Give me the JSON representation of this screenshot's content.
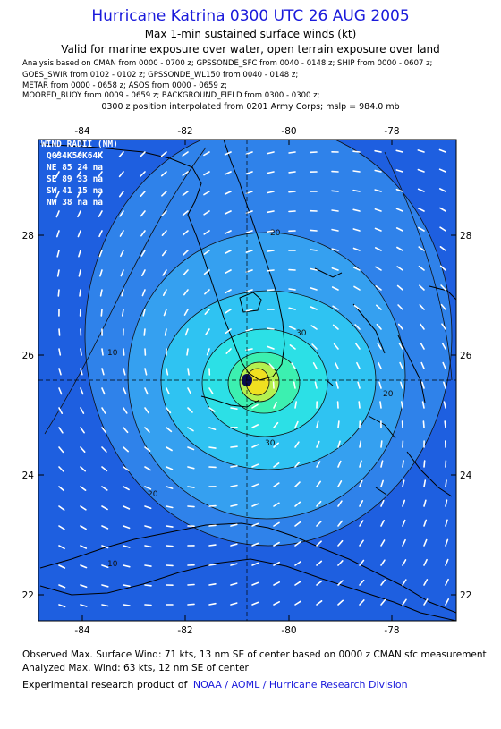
{
  "header": {
    "title": "Hurricane Katrina 0300 UTC 26 AUG 2005",
    "subtitle_1": "Max 1-min sustained surface winds (kt)",
    "subtitle_2": "Valid for marine exposure over water, open terrain exposure over land"
  },
  "analysis_sources": {
    "line_1": "Analysis based on  CMAN from 0000 - 0700 z;  GPSSONDE_SFC from 0040 - 0148 z;  SHIP from 0000 - 0607 z;",
    "line_2": "GOES_SWIR from 0102 - 0102 z;  GPSSONDE_WL150 from 0040 - 0148 z;",
    "line_3": "METAR from 0000 - 0658 z;  ASOS from 0000 - 0659 z;",
    "line_4": "MOORED_BUOY from 0009 - 0659 z;  BACKGROUND_FIELD from 0300 - 0300 z;"
  },
  "position_note": "0300 z position interpolated from 0201 Army Corps; mslp = 984.0 mb",
  "map": {
    "x_ticks": [
      "-84",
      "-82",
      "-80",
      "-78"
    ],
    "y_ticks": [
      "28",
      "26",
      "24",
      "22"
    ],
    "contour_labels": [
      "20",
      "30",
      "10",
      "20",
      "30",
      "20",
      "10"
    ],
    "colors": {
      "ocean_dark": "#1e5fe0",
      "ring_1": "#2f82ea",
      "ring_2": "#35a0f0",
      "ring_3": "#2fc3f2",
      "ring_4": "#2ce0e6",
      "ring_5": "#3cf0b0",
      "ring_6": "#b4f050",
      "ring_7": "#f0e020",
      "eye": "#0a0a50",
      "land_outline": "#000000",
      "wind_barb": "#ffffff"
    }
  },
  "wind_radii": {
    "title": "WIND RADII (NM)",
    "header": "Q034K50K64K",
    "rows": [
      {
        "quad": "NE",
        "r34": "85",
        "r50": "24",
        "r64": "na"
      },
      {
        "quad": "SE",
        "r34": "89",
        "r50": "33",
        "r64": "na"
      },
      {
        "quad": "SW",
        "r34": "41",
        "r50": "15",
        "r64": "na"
      },
      {
        "quad": "NW",
        "r34": "38",
        "r50": "na",
        "r64": "na"
      }
    ]
  },
  "footer": {
    "observed": "Observed Max. Surface Wind: 71 kts, 13 nm SE of center based on 0000 z CMAN sfc measurement",
    "analyzed": "Analyzed Max. Wind: 63 kts, 12 nm SE of center",
    "credit_prefix": "Experimental research product of",
    "credit_link": "NOAA / AOML / Hurricane Research Division"
  }
}
